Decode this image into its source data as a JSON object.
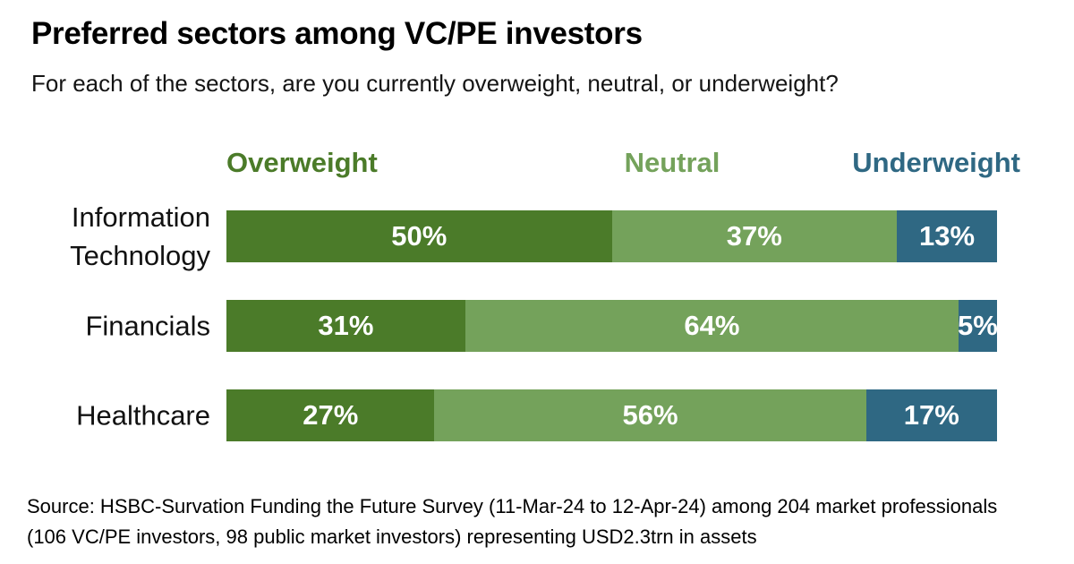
{
  "page": {
    "title": "Preferred sectors among VC/PE investors",
    "subtitle": "For each of the sectors, are you currently overweight, neutral, or underweight?",
    "source_line1": "Source: HSBC-Survation Funding the Future Survey (11-Mar-24 to 12-Apr-24) among 204 market professionals",
    "source_line2": "(106 VC/PE investors, 98 public market investors) representing USD2.3trn in assets",
    "background_color": "#FFFFFF"
  },
  "chart_data": {
    "type": "bar",
    "orientation": "horizontal-stacked",
    "unit": "%",
    "title": "Preferred sectors among VC/PE investors",
    "categories": [
      "Information Technology",
      "Financials",
      "Healthcare"
    ],
    "series": [
      {
        "name": "Overweight",
        "color": "#4B7B29",
        "values": [
          50,
          31,
          27
        ]
      },
      {
        "name": "Neutral",
        "color": "#74A25B",
        "values": [
          37,
          64,
          56
        ]
      },
      {
        "name": "Underweight",
        "color": "#2F6883",
        "values": [
          13,
          5,
          17
        ]
      }
    ],
    "xlim": [
      0,
      100
    ],
    "value_label_color": "#FFFFFF",
    "legend_position": "top",
    "grid": false,
    "axis_ticks_visible": false
  }
}
